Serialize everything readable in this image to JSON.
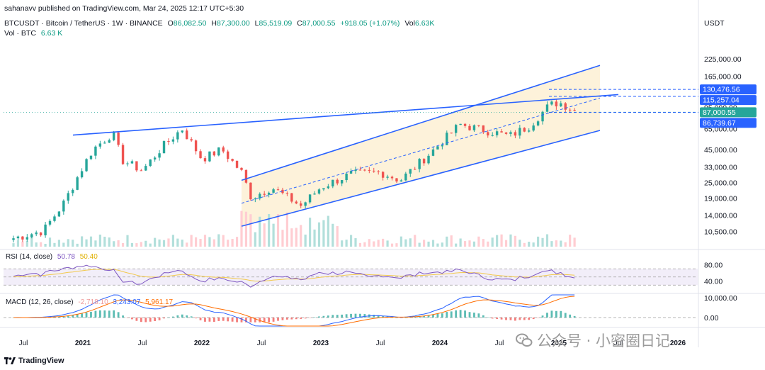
{
  "header": {
    "published": "sahanavv published on TradingView.com, Mar 24, 2025 12:17 UTC+5:30",
    "symbol": "BTCUSDT · Bitcoin / TetherUS · 1W · BINANCE",
    "o_label": "O",
    "o_value": "86,082.50",
    "h_label": "H",
    "h_value": "87,300.00",
    "l_label": "L",
    "l_value": "85,519.09",
    "c_label": "C",
    "c_value": "87,000.55",
    "change": "+918.05 (+1.07%)",
    "vol_label": "Vol",
    "vol_value": "6.63K",
    "vol_line_label": "Vol · BTC",
    "vol_line_value": "6.63 K"
  },
  "price_axis": {
    "currency": "USDT",
    "ticks": [
      "225,000.00",
      "165,000.00",
      "95,000.00",
      "65,000.00",
      "45,000.00",
      "33,000.00",
      "25,000.00",
      "19,000.00",
      "14,000.00",
      "10,500.00"
    ],
    "badges": [
      {
        "label": "130,476.56",
        "color": "#2962ff"
      },
      {
        "label": "115,257.04",
        "color": "#2962ff"
      },
      {
        "label": "87,000.55",
        "color": "#26a69a"
      },
      {
        "label": "86,739.67",
        "color": "#2962ff"
      }
    ]
  },
  "rsi": {
    "title": "RSI (14, close)",
    "value": "50.78",
    "ma_value": "50.40",
    "ticks": [
      "80.00",
      "40.00"
    ],
    "color_line": "#7e57c2",
    "color_ma": "#f2c94c"
  },
  "macd": {
    "title": "MACD (12, 26, close)",
    "hist_value": "-2,718.10",
    "macd_value": "3,243.07",
    "signal_value": "5,961.17",
    "ticks": [
      "10,000.00",
      "0.00"
    ],
    "color_macd": "#2962ff",
    "color_signal": "#ff6d00"
  },
  "time_axis": [
    "Jul",
    "2021",
    "Jul",
    "2022",
    "Jul",
    "2023",
    "Jul",
    "2024",
    "Jul",
    "2025",
    "Jul",
    "2026"
  ],
  "footer": {
    "brand": "TradingView",
    "watermark": "公众号 · 小密圈日记"
  },
  "colors": {
    "up": "#26a69a",
    "down": "#ef5350",
    "channel_fill": "#fdf1d6",
    "trend_line": "#2962ff"
  },
  "chart_data": {
    "type": "candlestick",
    "title": "BTCUSDT · Bitcoin / TetherUS · 1W · BINANCE",
    "y_scale": "log",
    "ylim": [
      8000,
      300000
    ],
    "x_range": [
      "2020-05",
      "2026-03"
    ],
    "series": [
      {
        "name": "BTCUSDT",
        "points": [
          [
            "2020-06",
            9300
          ],
          [
            "2020-09",
            10600
          ],
          [
            "2020-11",
            17000
          ],
          [
            "2021-01",
            33000
          ],
          [
            "2021-02",
            45000
          ],
          [
            "2021-04",
            60000
          ],
          [
            "2021-05",
            37000
          ],
          [
            "2021-07",
            31000
          ],
          [
            "2021-09",
            47000
          ],
          [
            "2021-11",
            65000
          ],
          [
            "2022-01",
            38000
          ],
          [
            "2022-03",
            45000
          ],
          [
            "2022-05",
            30000
          ],
          [
            "2022-06",
            19000
          ],
          [
            "2022-08",
            23000
          ],
          [
            "2022-11",
            16500
          ],
          [
            "2023-01",
            23000
          ],
          [
            "2023-04",
            29000
          ],
          [
            "2023-07",
            30000
          ],
          [
            "2023-09",
            26000
          ],
          [
            "2023-12",
            42000
          ],
          [
            "2024-03",
            70000
          ],
          [
            "2024-06",
            62000
          ],
          [
            "2024-08",
            57000
          ],
          [
            "2024-10",
            68000
          ],
          [
            "2024-12",
            98000
          ],
          [
            "2025-01",
            104000
          ],
          [
            "2025-03",
            87000
          ]
        ]
      }
    ],
    "levels": [
      130476.56,
      115257.04,
      87000.55,
      86739.67
    ],
    "last_price": 87000.55,
    "rsi_last": 50.78,
    "macd_last": {
      "histogram": -2718.1,
      "macd": 3243.07,
      "signal": 5961.17
    }
  }
}
